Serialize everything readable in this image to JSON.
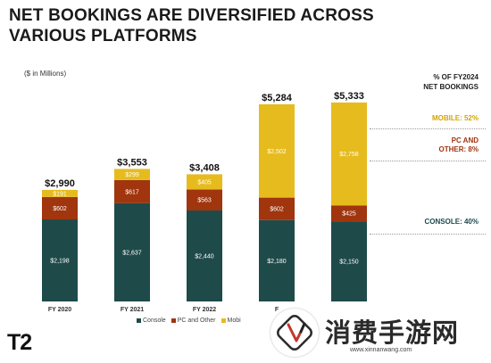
{
  "title_line1": "NET BOOKINGS ARE DIVERSIFIED ACROSS",
  "title_line2": "VARIOUS PLATFORMS",
  "units": "($ in Millions)",
  "right_header_line1": "% OF FY2024",
  "right_header_line2": "NET BOOKINGS",
  "share_labels": {
    "mobile": "MOBILE: 52%",
    "pc_line1": "PC AND",
    "pc_line2": "OTHER: 8%",
    "console": "CONSOLE: 40%"
  },
  "logo": "T2",
  "watermark_text": "消费手游网",
  "watermark_url": "www.xinnanwang.com",
  "colors": {
    "console": "#1f4a4a",
    "pc": "#a0350e",
    "mobile": "#e6bb1e",
    "mobile_label": "#d4a400",
    "pc_label": "#a0350e",
    "console_label": "#1f4a4a"
  },
  "chart_data": {
    "type": "bar",
    "stacked": true,
    "categories": [
      "FY 2020",
      "FY 2021",
      "FY 2022",
      "F",
      ""
    ],
    "totals": [
      "$2,990",
      "$3,553",
      "$3,408",
      "$5,284",
      "$5,333"
    ],
    "series": [
      {
        "name": "Console",
        "values": [
          2198,
          2637,
          2440,
          2180,
          2150
        ],
        "labels": [
          "$2,198",
          "$2,637",
          "$2,440",
          "$2,180",
          "$2,150"
        ]
      },
      {
        "name": "PC and Other",
        "values": [
          602,
          617,
          563,
          602,
          425
        ],
        "labels": [
          "$602",
          "$617",
          "$563",
          "$602",
          "$425"
        ]
      },
      {
        "name": "Mobi",
        "values": [
          191,
          299,
          405,
          2502,
          2758
        ],
        "labels": [
          "$191",
          "$299",
          "$405",
          "$2,502",
          "$2,758"
        ]
      }
    ],
    "ylim": [
      0,
      5600
    ],
    "grid": false,
    "legend": "bottom"
  }
}
